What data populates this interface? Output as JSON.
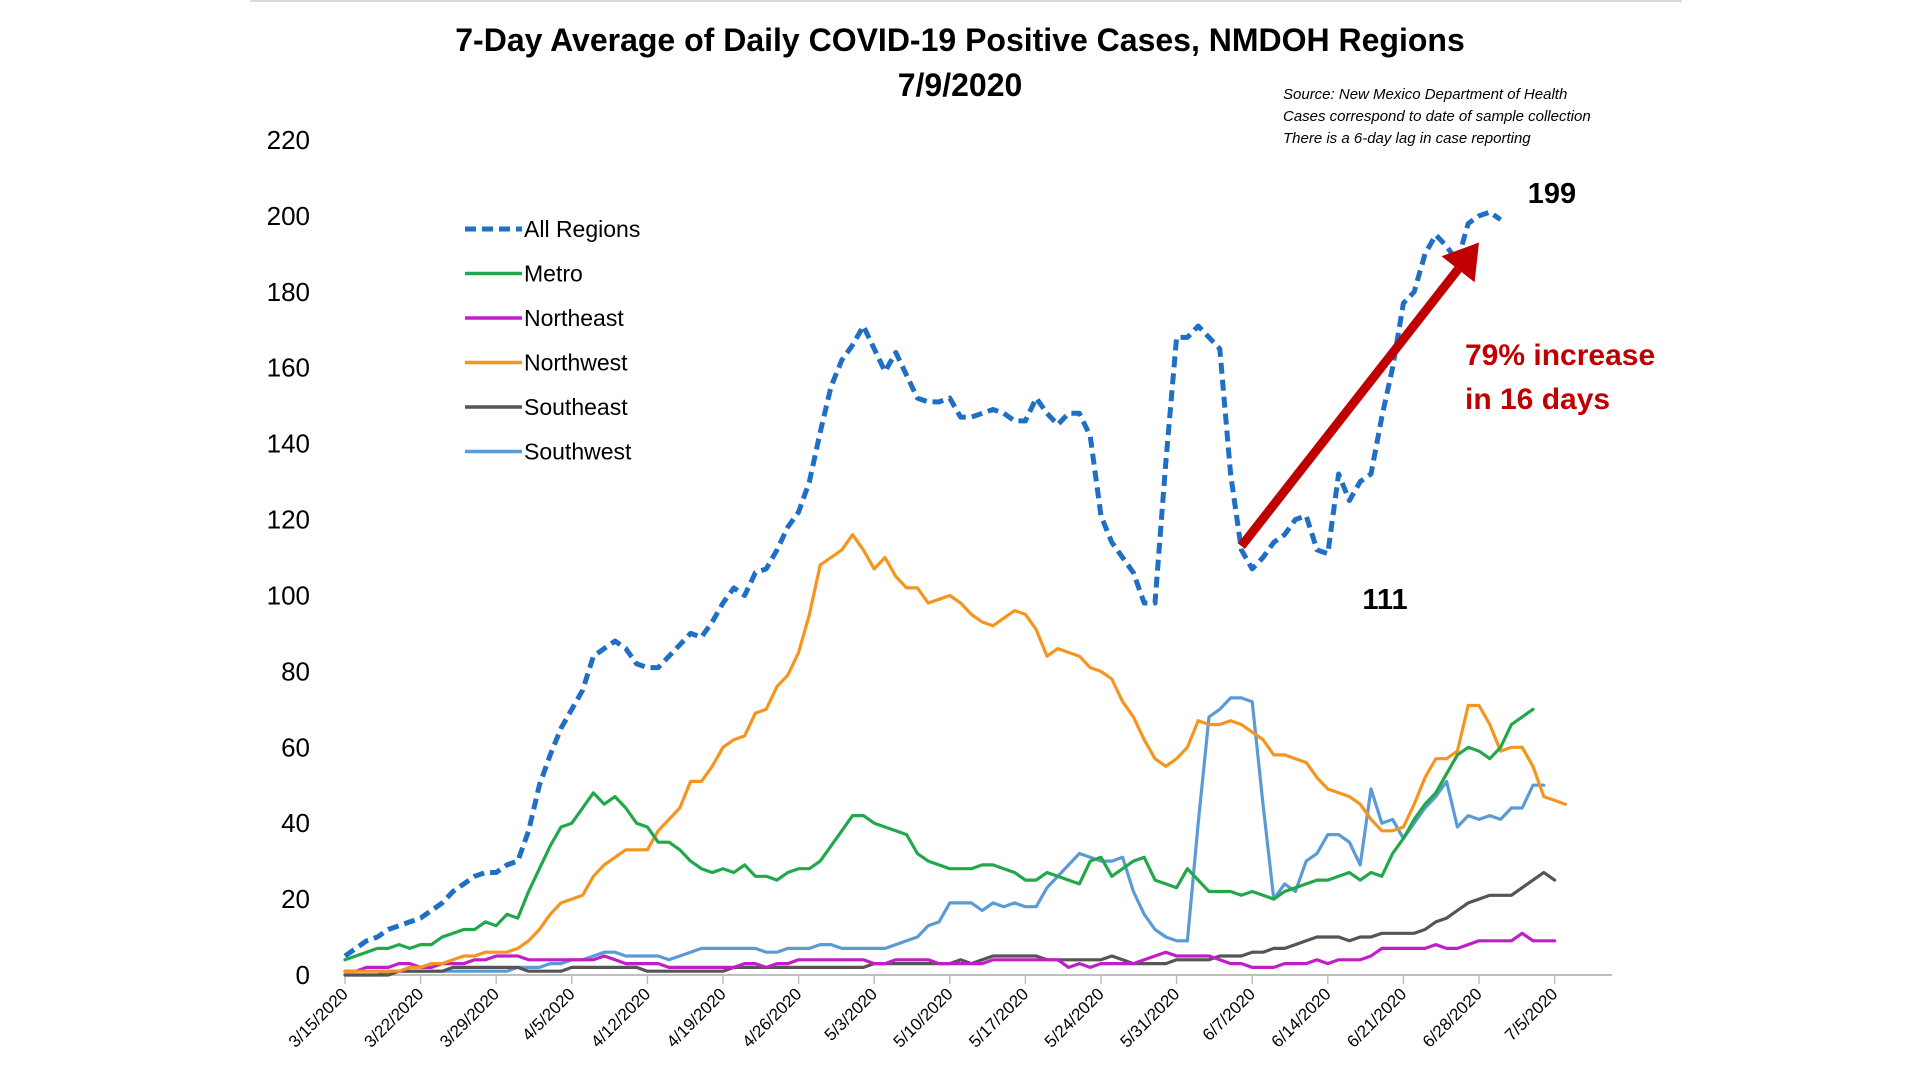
{
  "chart_data": {
    "type": "line",
    "title": "7-Day Average of Daily COVID-19 Positive Cases, NMDOH Regions",
    "subtitle": "7/9/2020",
    "source_lines": [
      "Source: New Mexico Department of Health",
      "Cases correspond to date of sample collection",
      "There is a 6-day lag in case reporting"
    ],
    "xlabel": "",
    "ylabel": "",
    "ylim": [
      0,
      220
    ],
    "yticks": [
      0,
      20,
      40,
      60,
      80,
      100,
      120,
      140,
      160,
      180,
      200,
      220
    ],
    "x_start": "3/15/2020",
    "x_days": 113,
    "xticks": [
      "3/15/2020",
      "3/22/2020",
      "3/29/2020",
      "4/5/2020",
      "4/12/2020",
      "4/19/2020",
      "4/26/2020",
      "5/3/2020",
      "5/10/2020",
      "5/17/2020",
      "5/24/2020",
      "5/31/2020",
      "6/7/2020",
      "6/14/2020",
      "6/21/2020",
      "6/28/2020",
      "7/5/2020"
    ],
    "grid": false,
    "legend_position": "top-left",
    "series": [
      {
        "name": "All Regions",
        "color": "#1f6fc5",
        "dashed": true,
        "start": "3/15/2020",
        "values": [
          5,
          7,
          9,
          10,
          12,
          13,
          14,
          15,
          17,
          19,
          22,
          24,
          26,
          27,
          27,
          29,
          30,
          38,
          50,
          58,
          65,
          70,
          75,
          84,
          86,
          88,
          86,
          82,
          81,
          81,
          84,
          87,
          90,
          89,
          93,
          98,
          102,
          100,
          106,
          107,
          112,
          118,
          122,
          130,
          143,
          155,
          162,
          166,
          171,
          165,
          159,
          164,
          158,
          152,
          151,
          151,
          152,
          147,
          147,
          148,
          149,
          148,
          146,
          146,
          152,
          148,
          145,
          148,
          148,
          142,
          121,
          114,
          110,
          106,
          98,
          98,
          135,
          168,
          168,
          171,
          168,
          165,
          132,
          112,
          107,
          110,
          114,
          116,
          120,
          121,
          112,
          111,
          132,
          125,
          130,
          132,
          147,
          160,
          177,
          180,
          190,
          195,
          192,
          188,
          198,
          200,
          201,
          199
        ]
      },
      {
        "name": "Metro",
        "color": "#22a84a",
        "dashed": false,
        "start": "3/15/2020",
        "values": [
          4,
          5,
          6,
          7,
          7,
          8,
          7,
          8,
          8,
          10,
          11,
          12,
          12,
          14,
          13,
          16,
          15,
          22,
          28,
          34,
          39,
          40,
          44,
          48,
          45,
          47,
          44,
          40,
          39,
          35,
          35,
          33,
          30,
          28,
          27,
          28,
          27,
          29,
          26,
          26,
          25,
          27,
          28,
          28,
          30,
          34,
          38,
          42,
          42,
          40,
          39,
          38,
          37,
          32,
          30,
          29,
          28,
          28,
          28,
          29,
          29,
          28,
          27,
          25,
          25,
          27,
          26,
          25,
          24,
          30,
          31,
          26,
          28,
          30,
          31,
          25,
          24,
          23,
          28,
          25,
          22,
          22,
          22,
          21,
          22,
          21,
          20,
          22,
          23,
          24,
          25,
          25,
          26,
          27,
          25,
          27,
          26,
          32,
          36,
          41,
          45,
          48,
          53,
          58,
          60,
          59,
          57,
          60,
          66,
          68,
          70
        ]
      },
      {
        "name": "Northeast",
        "color": "#c01fc8",
        "dashed": false,
        "start": "3/15/2020",
        "values": [
          1,
          1,
          2,
          2,
          2,
          3,
          3,
          2,
          2,
          3,
          3,
          3,
          4,
          4,
          5,
          5,
          5,
          4,
          4,
          4,
          4,
          4,
          4,
          4,
          5,
          4,
          3,
          3,
          3,
          3,
          2,
          2,
          2,
          2,
          2,
          2,
          2,
          3,
          3,
          2,
          3,
          3,
          4,
          4,
          4,
          4,
          4,
          4,
          4,
          3,
          3,
          4,
          4,
          4,
          4,
          3,
          3,
          3,
          3,
          3,
          4,
          4,
          4,
          4,
          4,
          4,
          4,
          2,
          3,
          2,
          3,
          3,
          3,
          3,
          4,
          5,
          6,
          5,
          5,
          5,
          5,
          4,
          3,
          3,
          2,
          2,
          2,
          3,
          3,
          3,
          4,
          3,
          4,
          4,
          4,
          5,
          7,
          7,
          7,
          7,
          7,
          8,
          7,
          7,
          8,
          9,
          9,
          9,
          9,
          11,
          9,
          9,
          9
        ]
      },
      {
        "name": "Northwest",
        "color": "#f5951f",
        "dashed": false,
        "start": "3/15/2020",
        "values": [
          1,
          1,
          1,
          1,
          1,
          1,
          2,
          2,
          3,
          3,
          4,
          5,
          5,
          6,
          6,
          6,
          7,
          9,
          12,
          16,
          19,
          20,
          21,
          26,
          29,
          31,
          33,
          33,
          33,
          38,
          41,
          44,
          51,
          51,
          55,
          60,
          62,
          63,
          69,
          70,
          76,
          79,
          85,
          95,
          108,
          110,
          112,
          116,
          112,
          107,
          110,
          105,
          102,
          102,
          98,
          99,
          100,
          98,
          95,
          93,
          92,
          94,
          96,
          95,
          91,
          84,
          86,
          85,
          84,
          81,
          80,
          78,
          72,
          68,
          62,
          57,
          55,
          57,
          60,
          67,
          66,
          66,
          67,
          66,
          64,
          62,
          58,
          58,
          57,
          56,
          52,
          49,
          48,
          47,
          45,
          41,
          38,
          38,
          39,
          45,
          52,
          57,
          57,
          59,
          71,
          71,
          66,
          59,
          60,
          60,
          55,
          47,
          46,
          45
        ]
      },
      {
        "name": "Southeast",
        "color": "#555555",
        "dashed": false,
        "start": "3/15/2020",
        "values": [
          0,
          0,
          0,
          0,
          0,
          1,
          1,
          1,
          1,
          1,
          2,
          2,
          2,
          2,
          2,
          2,
          2,
          1,
          1,
          1,
          1,
          2,
          2,
          2,
          2,
          2,
          2,
          2,
          1,
          1,
          1,
          1,
          1,
          1,
          1,
          1,
          2,
          2,
          2,
          2,
          2,
          2,
          2,
          2,
          2,
          2,
          2,
          2,
          2,
          3,
          3,
          3,
          3,
          3,
          3,
          3,
          3,
          4,
          3,
          4,
          5,
          5,
          5,
          5,
          5,
          4,
          4,
          4,
          4,
          4,
          4,
          5,
          4,
          3,
          3,
          3,
          3,
          4,
          4,
          4,
          4,
          5,
          5,
          5,
          6,
          6,
          7,
          7,
          8,
          9,
          10,
          10,
          10,
          9,
          10,
          10,
          11,
          11,
          11,
          11,
          12,
          14,
          15,
          17,
          19,
          20,
          21,
          21,
          21,
          23,
          25,
          27,
          25
        ]
      },
      {
        "name": "Southwest",
        "color": "#5b9bd5",
        "dashed": false,
        "start": "3/15/2020",
        "values": [
          0,
          0,
          0,
          0,
          1,
          1,
          1,
          1,
          1,
          1,
          1,
          1,
          1,
          1,
          1,
          1,
          2,
          2,
          2,
          3,
          3,
          4,
          4,
          5,
          6,
          6,
          5,
          5,
          5,
          5,
          4,
          5,
          6,
          7,
          7,
          7,
          7,
          7,
          7,
          6,
          6,
          7,
          7,
          7,
          8,
          8,
          7,
          7,
          7,
          7,
          7,
          8,
          9,
          10,
          13,
          14,
          19,
          19,
          19,
          17,
          19,
          18,
          19,
          18,
          18,
          23,
          26,
          29,
          32,
          31,
          30,
          30,
          31,
          22,
          16,
          12,
          10,
          9,
          9,
          40,
          68,
          70,
          73,
          73,
          72,
          45,
          20,
          24,
          22,
          30,
          32,
          37,
          37,
          35,
          29,
          49,
          40,
          41,
          36,
          40,
          44,
          47,
          51,
          39,
          42,
          41,
          42,
          41,
          44,
          44,
          50,
          50
        ]
      }
    ],
    "annotations": {
      "start_value_label": "111",
      "end_value_label": "199",
      "increase_line1": "79% increase",
      "increase_line2": "in 16 days",
      "arrow_color": "#c00000",
      "arrow_from": {
        "day": 83,
        "value": 113
      },
      "arrow_to": {
        "day": 105,
        "value": 193
      }
    }
  }
}
